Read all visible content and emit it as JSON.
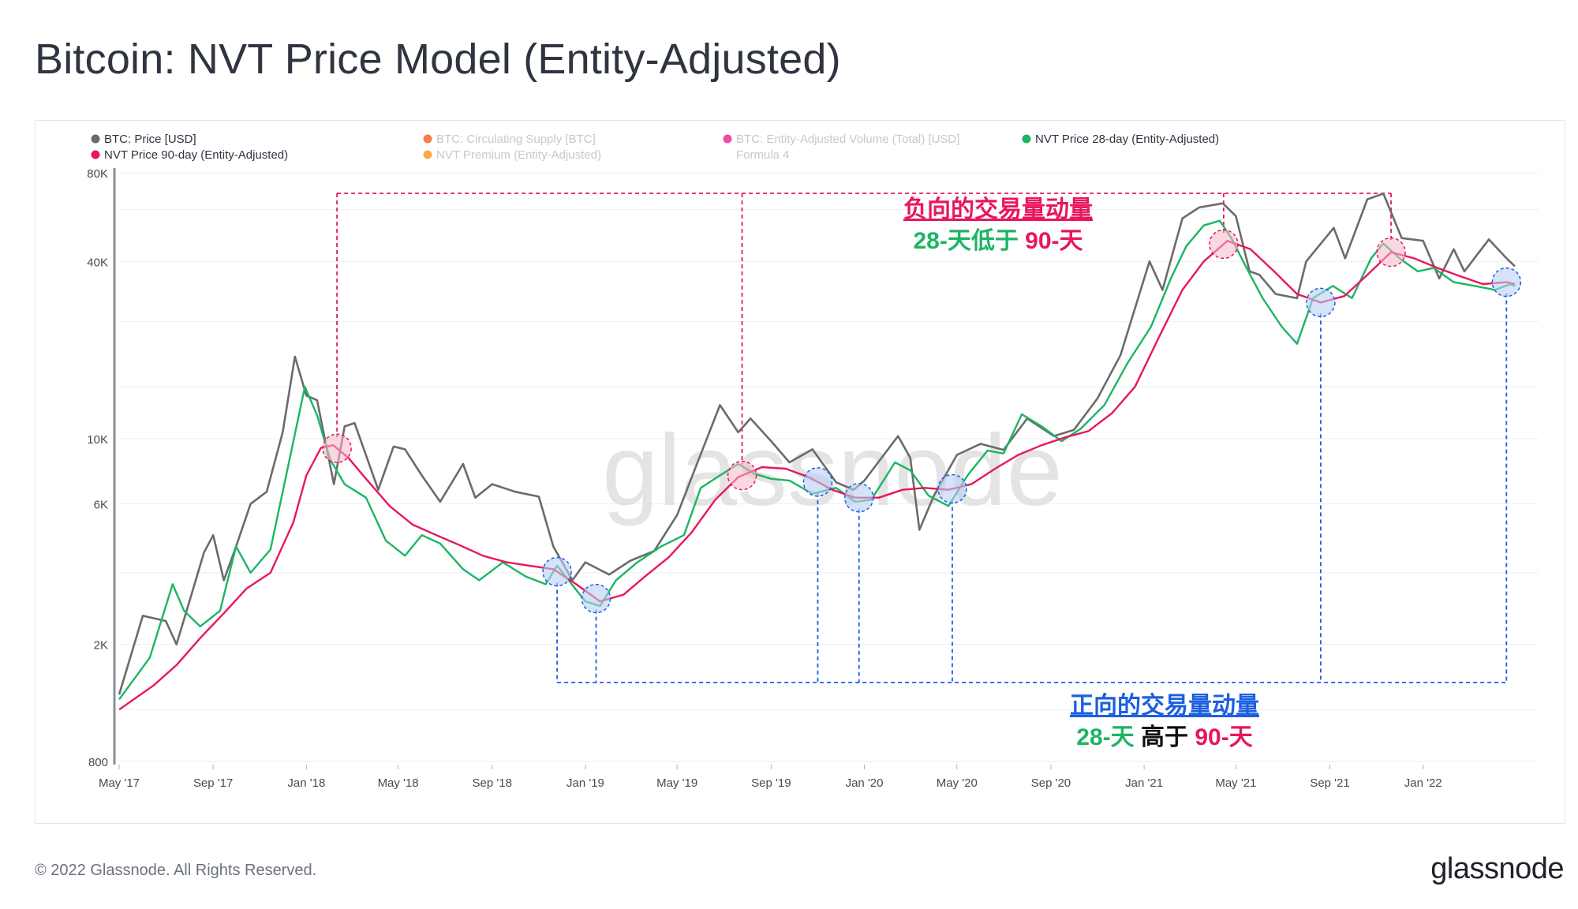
{
  "page": {
    "title": "Bitcoin: NVT Price Model (Entity-Adjusted)",
    "footer_copyright": "© 2022 Glassnode. All Rights Reserved.",
    "footer_logo": "glassnode",
    "watermark": "glassnode"
  },
  "legend": [
    {
      "label": "BTC: Price [USD]",
      "color": "#6b6b6b",
      "active": true
    },
    {
      "label": "BTC: Circulating Supply [BTC]",
      "color": "#f75a1e",
      "active": false
    },
    {
      "label": "BTC: Entity-Adjusted Volume (Total) [USD]",
      "color": "#ee1b8c",
      "active": false
    },
    {
      "label": "NVT Price 28-day (Entity-Adjusted)",
      "color": "#1db563",
      "active": true
    },
    {
      "label": "NVT Price 90-day (Entity-Adjusted)",
      "color": "#e8175d",
      "active": true
    },
    {
      "label": "NVT Premium (Entity-Adjusted)",
      "color": "#f7931a",
      "active": false
    },
    {
      "label": "Formula 4",
      "color": "",
      "active": false
    }
  ],
  "annotations": {
    "negative": {
      "title": "负向的交易量动量",
      "line2_a": "28-天低于",
      "line2_b": "90-天",
      "title_color": "#e8175d",
      "a_color": "#1db563",
      "b_color": "#e8175d"
    },
    "positive": {
      "title": "正向的交易量动量",
      "line2_a": "28-天",
      "line2_mid": "高于",
      "line2_b": "90-天",
      "title_color": "#1c5fe0",
      "a_color": "#1db563",
      "mid_color": "#111111",
      "b_color": "#e8175d"
    }
  },
  "chart_data": {
    "type": "line",
    "title": "Bitcoin: NVT Price Model (Entity-Adjusted)",
    "y_scale": "log",
    "ylim": [
      800,
      80000
    ],
    "y_ticks": [
      {
        "v": 800,
        "label": "800"
      },
      {
        "v": 2000,
        "label": "2K"
      },
      {
        "v": 6000,
        "label": "6K"
      },
      {
        "v": 10000,
        "label": "10K"
      },
      {
        "v": 40000,
        "label": "40K"
      },
      {
        "v": 80000,
        "label": "80K"
      }
    ],
    "x_range": [
      "2017-05-01",
      "2022-06-01"
    ],
    "x_ticks": [
      {
        "date": "2017-05-01",
        "label": "May '17"
      },
      {
        "date": "2017-09-01",
        "label": "Sep '17"
      },
      {
        "date": "2018-01-01",
        "label": "Jan '18"
      },
      {
        "date": "2018-05-01",
        "label": "May '18"
      },
      {
        "date": "2018-09-01",
        "label": "Sep '18"
      },
      {
        "date": "2019-01-01",
        "label": "Jan '19"
      },
      {
        "date": "2019-05-01",
        "label": "May '19"
      },
      {
        "date": "2019-09-01",
        "label": "Sep '19"
      },
      {
        "date": "2020-01-01",
        "label": "Jan '20"
      },
      {
        "date": "2020-05-01",
        "label": "May '20"
      },
      {
        "date": "2020-09-01",
        "label": "Sep '20"
      },
      {
        "date": "2021-01-01",
        "label": "Jan '21"
      },
      {
        "date": "2021-05-01",
        "label": "May '21"
      },
      {
        "date": "2021-09-01",
        "label": "Sep '21"
      },
      {
        "date": "2022-01-01",
        "label": "Jan '22"
      }
    ],
    "grid": true,
    "legend_position": "top-left",
    "series": [
      {
        "name": "BTC: Price [USD]",
        "color": "#6b6b6b",
        "points": [
          [
            "2017-05-01",
            1350
          ],
          [
            "2017-06-01",
            2500
          ],
          [
            "2017-07-01",
            2400
          ],
          [
            "2017-07-15",
            2000
          ],
          [
            "2017-08-01",
            2800
          ],
          [
            "2017-08-20",
            4100
          ],
          [
            "2017-09-01",
            4700
          ],
          [
            "2017-09-15",
            3300
          ],
          [
            "2017-10-01",
            4300
          ],
          [
            "2017-10-20",
            6000
          ],
          [
            "2017-11-10",
            6600
          ],
          [
            "2017-12-01",
            10500
          ],
          [
            "2017-12-17",
            19000
          ],
          [
            "2018-01-01",
            14000
          ],
          [
            "2018-01-15",
            13500
          ],
          [
            "2018-02-06",
            7000
          ],
          [
            "2018-02-20",
            11000
          ],
          [
            "2018-03-05",
            11300
          ],
          [
            "2018-04-05",
            6700
          ],
          [
            "2018-04-25",
            9400
          ],
          [
            "2018-05-10",
            9200
          ],
          [
            "2018-06-01",
            7500
          ],
          [
            "2018-06-25",
            6100
          ],
          [
            "2018-07-25",
            8200
          ],
          [
            "2018-08-10",
            6300
          ],
          [
            "2018-09-01",
            7000
          ],
          [
            "2018-10-01",
            6600
          ],
          [
            "2018-11-01",
            6350
          ],
          [
            "2018-11-20",
            4300
          ],
          [
            "2018-12-15",
            3300
          ],
          [
            "2019-01-01",
            3800
          ],
          [
            "2019-02-01",
            3450
          ],
          [
            "2019-03-01",
            3850
          ],
          [
            "2019-04-01",
            4150
          ],
          [
            "2019-05-01",
            5500
          ],
          [
            "2019-05-30",
            8600
          ],
          [
            "2019-06-26",
            13000
          ],
          [
            "2019-07-20",
            10500
          ],
          [
            "2019-08-05",
            11700
          ],
          [
            "2019-09-01",
            9800
          ],
          [
            "2019-09-25",
            8300
          ],
          [
            "2019-10-25",
            9200
          ],
          [
            "2019-11-25",
            7100
          ],
          [
            "2019-12-18",
            6700
          ],
          [
            "2020-01-01",
            7200
          ],
          [
            "2020-02-14",
            10200
          ],
          [
            "2020-03-01",
            8600
          ],
          [
            "2020-03-13",
            4900
          ],
          [
            "2020-04-01",
            6400
          ],
          [
            "2020-05-01",
            8800
          ],
          [
            "2020-06-01",
            9600
          ],
          [
            "2020-07-01",
            9150
          ],
          [
            "2020-08-01",
            11700
          ],
          [
            "2020-09-05",
            10200
          ],
          [
            "2020-10-01",
            10700
          ],
          [
            "2020-11-01",
            13700
          ],
          [
            "2020-12-01",
            19200
          ],
          [
            "2021-01-08",
            40000
          ],
          [
            "2021-01-25",
            32000
          ],
          [
            "2021-02-20",
            56000
          ],
          [
            "2021-03-14",
            61000
          ],
          [
            "2021-04-14",
            63000
          ],
          [
            "2021-05-01",
            57000
          ],
          [
            "2021-05-19",
            37000
          ],
          [
            "2021-06-01",
            36000
          ],
          [
            "2021-06-22",
            31000
          ],
          [
            "2021-07-20",
            30000
          ],
          [
            "2021-08-01",
            40000
          ],
          [
            "2021-09-06",
            52000
          ],
          [
            "2021-09-21",
            41000
          ],
          [
            "2021-10-20",
            65000
          ],
          [
            "2021-11-10",
            68000
          ],
          [
            "2021-12-04",
            48000
          ],
          [
            "2022-01-01",
            47000
          ],
          [
            "2022-01-22",
            35000
          ],
          [
            "2022-02-10",
            44000
          ],
          [
            "2022-02-24",
            37000
          ],
          [
            "2022-03-28",
            47500
          ],
          [
            "2022-04-20",
            41000
          ],
          [
            "2022-05-01",
            38500
          ]
        ]
      },
      {
        "name": "NVT Price 28-day (Entity-Adjusted)",
        "color": "#1db563",
        "points": [
          [
            "2017-05-01",
            1300
          ],
          [
            "2017-06-10",
            1800
          ],
          [
            "2017-07-10",
            3200
          ],
          [
            "2017-07-25",
            2600
          ],
          [
            "2017-08-15",
            2300
          ],
          [
            "2017-09-10",
            2600
          ],
          [
            "2017-10-01",
            4300
          ],
          [
            "2017-10-20",
            3500
          ],
          [
            "2017-11-15",
            4200
          ],
          [
            "2017-12-10",
            8500
          ],
          [
            "2017-12-30",
            15000
          ],
          [
            "2018-01-15",
            12000
          ],
          [
            "2018-02-01",
            8500
          ],
          [
            "2018-02-20",
            7000
          ],
          [
            "2018-03-20",
            6300
          ],
          [
            "2018-04-15",
            4500
          ],
          [
            "2018-05-10",
            4000
          ],
          [
            "2018-06-01",
            4700
          ],
          [
            "2018-06-25",
            4400
          ],
          [
            "2018-07-25",
            3600
          ],
          [
            "2018-08-15",
            3300
          ],
          [
            "2018-09-15",
            3800
          ],
          [
            "2018-10-15",
            3400
          ],
          [
            "2018-11-10",
            3200
          ],
          [
            "2018-11-25",
            3700
          ],
          [
            "2018-12-10",
            3300
          ],
          [
            "2019-01-01",
            2800
          ],
          [
            "2019-01-20",
            2700
          ],
          [
            "2019-02-10",
            3300
          ],
          [
            "2019-03-10",
            3800
          ],
          [
            "2019-04-10",
            4300
          ],
          [
            "2019-05-10",
            4700
          ],
          [
            "2019-06-01",
            6800
          ],
          [
            "2019-06-26",
            7500
          ],
          [
            "2019-07-20",
            8200
          ],
          [
            "2019-08-10",
            7600
          ],
          [
            "2019-09-01",
            7300
          ],
          [
            "2019-09-25",
            7200
          ],
          [
            "2019-10-25",
            6500
          ],
          [
            "2019-11-25",
            6800
          ],
          [
            "2019-12-20",
            6100
          ],
          [
            "2020-01-10",
            6200
          ],
          [
            "2020-02-10",
            8300
          ],
          [
            "2020-03-01",
            7800
          ],
          [
            "2020-03-25",
            6400
          ],
          [
            "2020-04-20",
            5900
          ],
          [
            "2020-05-15",
            7500
          ],
          [
            "2020-06-10",
            9100
          ],
          [
            "2020-07-01",
            8900
          ],
          [
            "2020-07-25",
            12100
          ],
          [
            "2020-08-20",
            11000
          ],
          [
            "2020-09-15",
            9800
          ],
          [
            "2020-10-10",
            10800
          ],
          [
            "2020-11-10",
            13000
          ],
          [
            "2020-12-10",
            18000
          ],
          [
            "2021-01-10",
            24000
          ],
          [
            "2021-02-05",
            35000
          ],
          [
            "2021-02-25",
            45000
          ],
          [
            "2021-03-20",
            53000
          ],
          [
            "2021-04-10",
            55000
          ],
          [
            "2021-04-25",
            48000
          ],
          [
            "2021-05-15",
            38000
          ],
          [
            "2021-06-05",
            30000
          ],
          [
            "2021-06-30",
            24000
          ],
          [
            "2021-07-20",
            21000
          ],
          [
            "2021-08-10",
            30000
          ],
          [
            "2021-09-05",
            33000
          ],
          [
            "2021-09-30",
            30000
          ],
          [
            "2021-10-25",
            41000
          ],
          [
            "2021-11-10",
            46000
          ],
          [
            "2021-12-01",
            41000
          ],
          [
            "2021-12-25",
            37000
          ],
          [
            "2022-01-15",
            38000
          ],
          [
            "2022-02-10",
            34000
          ],
          [
            "2022-03-10",
            33000
          ],
          [
            "2022-04-05",
            32000
          ],
          [
            "2022-04-25",
            33500
          ],
          [
            "2022-05-01",
            33000
          ]
        ]
      },
      {
        "name": "NVT Price 90-day (Entity-Adjusted)",
        "color": "#e8175d",
        "points": [
          [
            "2017-05-01",
            1200
          ],
          [
            "2017-06-15",
            1450
          ],
          [
            "2017-07-15",
            1700
          ],
          [
            "2017-08-15",
            2100
          ],
          [
            "2017-09-15",
            2550
          ],
          [
            "2017-10-15",
            3100
          ],
          [
            "2017-11-15",
            3500
          ],
          [
            "2017-12-15",
            5200
          ],
          [
            "2018-01-01",
            7500
          ],
          [
            "2018-01-20",
            9300
          ],
          [
            "2018-02-05",
            9500
          ],
          [
            "2018-02-25",
            8600
          ],
          [
            "2018-03-20",
            7300
          ],
          [
            "2018-04-20",
            5900
          ],
          [
            "2018-05-20",
            5100
          ],
          [
            "2018-06-20",
            4700
          ],
          [
            "2018-07-20",
            4350
          ],
          [
            "2018-08-20",
            4000
          ],
          [
            "2018-09-20",
            3800
          ],
          [
            "2018-10-20",
            3700
          ],
          [
            "2018-11-20",
            3600
          ],
          [
            "2018-12-20",
            3200
          ],
          [
            "2019-01-20",
            2800
          ],
          [
            "2019-02-20",
            2950
          ],
          [
            "2019-03-20",
            3400
          ],
          [
            "2019-04-20",
            3950
          ],
          [
            "2019-05-20",
            4800
          ],
          [
            "2019-06-20",
            6200
          ],
          [
            "2019-07-20",
            7400
          ],
          [
            "2019-08-20",
            8000
          ],
          [
            "2019-09-20",
            7900
          ],
          [
            "2019-10-20",
            7400
          ],
          [
            "2019-11-20",
            6700
          ],
          [
            "2019-12-20",
            6300
          ],
          [
            "2020-01-20",
            6300
          ],
          [
            "2020-02-20",
            6700
          ],
          [
            "2020-03-20",
            6800
          ],
          [
            "2020-04-20",
            6700
          ],
          [
            "2020-05-20",
            7000
          ],
          [
            "2020-06-20",
            7900
          ],
          [
            "2020-07-20",
            8800
          ],
          [
            "2020-08-20",
            9500
          ],
          [
            "2020-09-20",
            10100
          ],
          [
            "2020-10-20",
            10600
          ],
          [
            "2020-11-20",
            12200
          ],
          [
            "2020-12-20",
            15000
          ],
          [
            "2021-01-20",
            22000
          ],
          [
            "2021-02-20",
            32000
          ],
          [
            "2021-03-20",
            40000
          ],
          [
            "2021-04-20",
            47000
          ],
          [
            "2021-05-20",
            44000
          ],
          [
            "2021-06-20",
            37000
          ],
          [
            "2021-07-20",
            31000
          ],
          [
            "2021-08-20",
            29000
          ],
          [
            "2021-09-20",
            30500
          ],
          [
            "2021-10-20",
            36000
          ],
          [
            "2021-11-20",
            43000
          ],
          [
            "2021-12-20",
            41000
          ],
          [
            "2022-01-20",
            38000
          ],
          [
            "2022-02-20",
            35500
          ],
          [
            "2022-03-20",
            33500
          ],
          [
            "2022-04-20",
            34000
          ],
          [
            "2022-05-01",
            33500
          ]
        ]
      }
    ],
    "markers": {
      "negative_crossovers": [
        "2018-02-10",
        "2019-07-25",
        "2021-04-15",
        "2021-11-20"
      ],
      "positive_crossovers": [
        "2018-11-25",
        "2019-01-15",
        "2019-11-01",
        "2019-12-25",
        "2020-04-25",
        "2021-08-20",
        "2022-04-20"
      ]
    }
  }
}
